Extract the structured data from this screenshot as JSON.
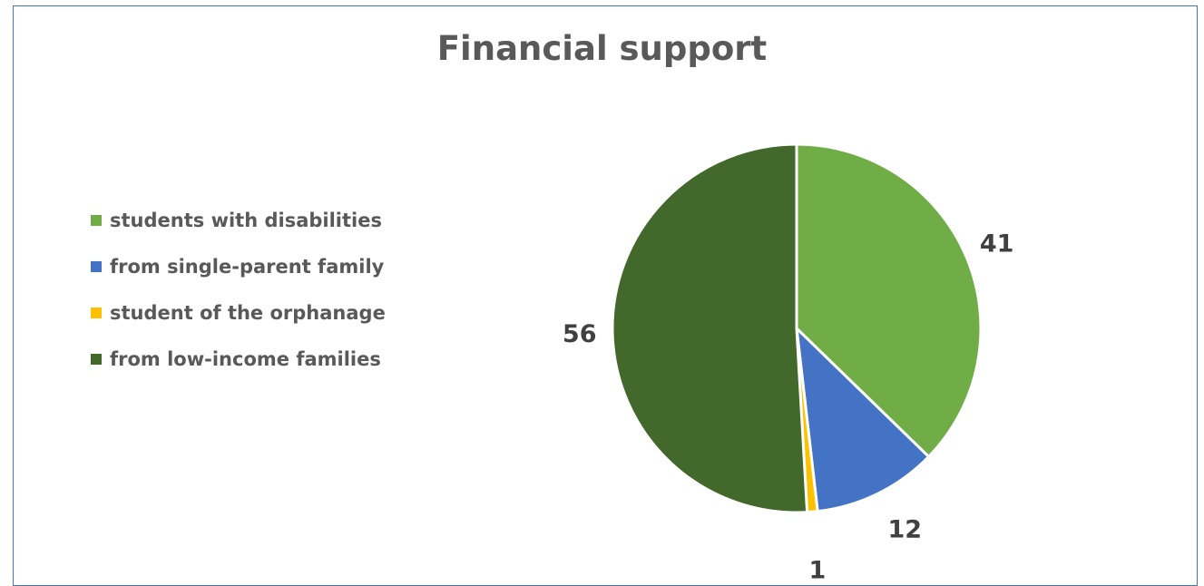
{
  "chart_data": {
    "type": "pie",
    "title": "Financial support",
    "categories": [
      "students with disabilities",
      "from single-parent family",
      "student of the orphanage",
      "from low-income families"
    ],
    "values": [
      41,
      12,
      1,
      56
    ],
    "colors": [
      "#70ad47",
      "#4472c4",
      "#ffc000",
      "#43682b"
    ],
    "legend": "left",
    "data_labels": [
      "41",
      "12",
      "1",
      "56"
    ]
  }
}
